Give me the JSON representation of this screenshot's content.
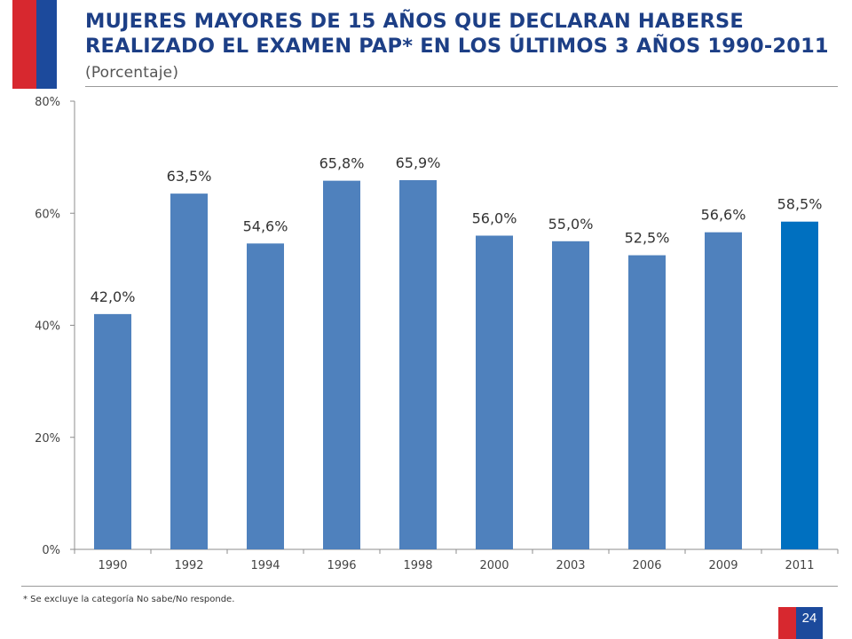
{
  "header": {
    "title": "MUJERES MAYORES DE 15 AÑOS QUE DECLARAN HABERSE REALIZADO EL EXAMEN PAP* EN LOS ÚLTIMOS 3 AÑOS 1990-2011",
    "subtitle": "(Porcentaje)"
  },
  "colors": {
    "flag_red": "#d7282f",
    "flag_blue": "#1c4a9c",
    "title_blue": "#1d3f86",
    "bar": "#4f81bd",
    "bar_highlight": "#0070c0"
  },
  "chart_data": {
    "type": "bar",
    "categories": [
      "1990",
      "1992",
      "1994",
      "1996",
      "1998",
      "2000",
      "2003",
      "2006",
      "2009",
      "2011"
    ],
    "values": [
      42.0,
      63.5,
      54.6,
      65.8,
      65.9,
      56.0,
      55.0,
      52.5,
      56.6,
      58.5
    ],
    "value_labels": [
      "42,0%",
      "63,5%",
      "54,6%",
      "65,8%",
      "65,9%",
      "56,0%",
      "55,0%",
      "52,5%",
      "56,6%",
      "58,5%"
    ],
    "highlight_category": "2011",
    "ylim": [
      0,
      80
    ],
    "yticks": [
      0,
      20,
      40,
      60,
      80
    ],
    "ytick_labels": [
      "0%",
      "20%",
      "40%",
      "60%",
      "80%"
    ],
    "grid": false,
    "legend": "none"
  },
  "footnote": "* Se excluye la categoría No sabe/No responde.",
  "page_number": "24"
}
